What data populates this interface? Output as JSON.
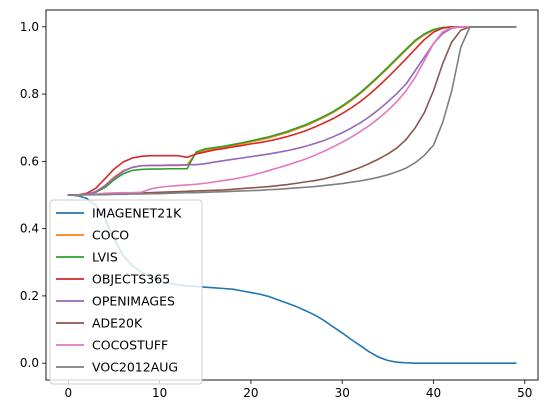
{
  "chart_data": {
    "type": "line",
    "title": "",
    "xlabel": "",
    "ylabel": "",
    "xlim": [
      -2.45,
      51.45
    ],
    "ylim": [
      -0.05,
      1.05
    ],
    "x_ticks": [
      0,
      10,
      20,
      30,
      40,
      50
    ],
    "y_ticks": [
      0.0,
      0.2,
      0.4,
      0.6,
      0.8,
      1.0
    ],
    "x_tick_labels": [
      "0",
      "10",
      "20",
      "30",
      "40",
      "50"
    ],
    "y_tick_labels": [
      "0.0",
      "0.2",
      "0.4",
      "0.6",
      "0.8",
      "1.0"
    ],
    "grid": false,
    "legend_position": "lower-left",
    "x": [
      0,
      1,
      2,
      3,
      4,
      5,
      6,
      7,
      8,
      9,
      10,
      11,
      12,
      13,
      14,
      15,
      16,
      17,
      18,
      19,
      20,
      21,
      22,
      23,
      24,
      25,
      26,
      27,
      28,
      29,
      30,
      31,
      32,
      33,
      34,
      35,
      36,
      37,
      38,
      39,
      40,
      41,
      42,
      43,
      44,
      45,
      46,
      47,
      48,
      49
    ],
    "series": [
      {
        "name": "IMAGENET21K",
        "color": "#1f77b4",
        "values": [
          0.5,
          0.498,
          0.49,
          0.47,
          0.43,
          0.37,
          0.32,
          0.29,
          0.27,
          0.255,
          0.245,
          0.238,
          0.233,
          0.23,
          0.228,
          0.226,
          0.224,
          0.222,
          0.22,
          0.215,
          0.21,
          0.205,
          0.198,
          0.188,
          0.178,
          0.168,
          0.156,
          0.143,
          0.127,
          0.108,
          0.09,
          0.07,
          0.052,
          0.033,
          0.018,
          0.008,
          0.003,
          0.001,
          0.0,
          0.0,
          0.0,
          0.0,
          0.0,
          0.0,
          0.0,
          0.0,
          0.0,
          0.0,
          0.0,
          0.0
        ]
      },
      {
        "name": "COCO",
        "color": "#ff7f0e",
        "values": [
          0.5,
          0.5,
          0.502,
          0.51,
          0.528,
          0.553,
          0.572,
          0.582,
          0.587,
          0.588,
          0.588,
          0.588,
          0.588,
          0.589,
          0.625,
          0.633,
          0.637,
          0.642,
          0.647,
          0.652,
          0.658,
          0.664,
          0.67,
          0.678,
          0.686,
          0.696,
          0.706,
          0.718,
          0.731,
          0.745,
          0.762,
          0.781,
          0.802,
          0.826,
          0.851,
          0.877,
          0.904,
          0.931,
          0.957,
          0.976,
          0.99,
          0.997,
          1.0,
          1.0,
          1.0,
          1.0,
          1.0,
          1.0,
          1.0,
          1.0
        ]
      },
      {
        "name": "LVIS",
        "color": "#2ca02c",
        "values": [
          0.5,
          0.5,
          0.502,
          0.508,
          0.522,
          0.545,
          0.563,
          0.573,
          0.576,
          0.577,
          0.577,
          0.578,
          0.578,
          0.578,
          0.628,
          0.637,
          0.641,
          0.645,
          0.65,
          0.655,
          0.661,
          0.667,
          0.673,
          0.681,
          0.689,
          0.699,
          0.709,
          0.721,
          0.734,
          0.748,
          0.765,
          0.784,
          0.805,
          0.829,
          0.854,
          0.88,
          0.907,
          0.934,
          0.96,
          0.979,
          0.992,
          0.998,
          1.0,
          1.0,
          1.0,
          1.0,
          1.0,
          1.0,
          1.0,
          1.0
        ]
      },
      {
        "name": "OBJECTS365",
        "color": "#d62728",
        "values": [
          0.5,
          0.5,
          0.505,
          0.52,
          0.548,
          0.577,
          0.598,
          0.61,
          0.615,
          0.617,
          0.617,
          0.617,
          0.617,
          0.612,
          0.622,
          0.628,
          0.634,
          0.638,
          0.643,
          0.647,
          0.652,
          0.656,
          0.661,
          0.667,
          0.674,
          0.682,
          0.691,
          0.702,
          0.714,
          0.727,
          0.742,
          0.759,
          0.778,
          0.8,
          0.824,
          0.85,
          0.877,
          0.905,
          0.934,
          0.962,
          0.984,
          0.996,
          1.0,
          1.0,
          1.0,
          1.0,
          1.0,
          1.0,
          1.0,
          1.0
        ]
      },
      {
        "name": "OPENIMAGES",
        "color": "#9467bd",
        "values": [
          0.5,
          0.5,
          0.502,
          0.51,
          0.527,
          0.55,
          0.57,
          0.582,
          0.587,
          0.588,
          0.588,
          0.589,
          0.589,
          0.59,
          0.59,
          0.593,
          0.598,
          0.602,
          0.606,
          0.61,
          0.614,
          0.618,
          0.622,
          0.627,
          0.632,
          0.638,
          0.645,
          0.653,
          0.662,
          0.673,
          0.685,
          0.699,
          0.715,
          0.733,
          0.754,
          0.777,
          0.802,
          0.83,
          0.87,
          0.91,
          0.95,
          0.98,
          0.996,
          1.0,
          1.0,
          1.0,
          1.0,
          1.0,
          1.0,
          1.0
        ]
      },
      {
        "name": "ADE20K",
        "color": "#8c564b",
        "values": [
          0.5,
          0.5,
          0.501,
          0.502,
          0.503,
          0.504,
          0.505,
          0.506,
          0.506,
          0.507,
          0.508,
          0.509,
          0.51,
          0.511,
          0.512,
          0.513,
          0.514,
          0.515,
          0.517,
          0.519,
          0.521,
          0.523,
          0.525,
          0.528,
          0.531,
          0.535,
          0.539,
          0.543,
          0.548,
          0.555,
          0.563,
          0.572,
          0.582,
          0.594,
          0.607,
          0.622,
          0.64,
          0.665,
          0.7,
          0.745,
          0.81,
          0.89,
          0.955,
          0.99,
          1.0,
          1.0,
          1.0,
          1.0,
          1.0,
          1.0
        ]
      },
      {
        "name": "COCOSTUFF",
        "color": "#e377c2",
        "values": [
          0.5,
          0.5,
          0.501,
          0.503,
          0.505,
          0.506,
          0.507,
          0.507,
          0.508,
          0.518,
          0.523,
          0.526,
          0.528,
          0.53,
          0.532,
          0.535,
          0.539,
          0.543,
          0.547,
          0.552,
          0.558,
          0.565,
          0.573,
          0.581,
          0.589,
          0.598,
          0.607,
          0.618,
          0.63,
          0.643,
          0.657,
          0.672,
          0.689,
          0.707,
          0.728,
          0.751,
          0.778,
          0.81,
          0.85,
          0.9,
          0.95,
          0.985,
          0.998,
          1.0,
          1.0,
          1.0,
          1.0,
          1.0,
          1.0,
          1.0
        ]
      },
      {
        "name": "VOC2012AUG",
        "color": "#7f7f7f",
        "values": [
          0.5,
          0.5,
          0.5,
          0.501,
          0.501,
          0.502,
          0.502,
          0.503,
          0.503,
          0.504,
          0.504,
          0.505,
          0.506,
          0.507,
          0.507,
          0.508,
          0.509,
          0.51,
          0.511,
          0.512,
          0.513,
          0.514,
          0.516,
          0.517,
          0.519,
          0.521,
          0.523,
          0.525,
          0.528,
          0.531,
          0.534,
          0.538,
          0.542,
          0.547,
          0.553,
          0.56,
          0.569,
          0.58,
          0.596,
          0.618,
          0.648,
          0.715,
          0.81,
          0.94,
          1.0,
          1.0,
          1.0,
          1.0,
          1.0,
          1.0
        ]
      }
    ]
  }
}
